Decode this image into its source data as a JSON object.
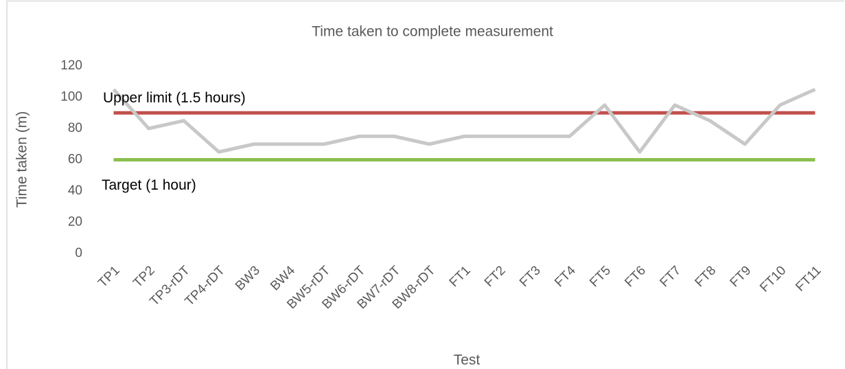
{
  "chart_data": {
    "type": "line",
    "title": "Time taken to complete measurement",
    "xlabel": "Test",
    "ylabel": "Time taken (m)",
    "categories": [
      "TP1",
      "TP2",
      "TP3-rDT",
      "TP4-rDT",
      "BW3",
      "BW4",
      "BW5-rDT",
      "BW6-rDT",
      "BW7-rDT",
      "BW8-rDT",
      "FT1",
      "FT2",
      "FT3",
      "FT4",
      "FT5",
      "FT6",
      "FT7",
      "FT8",
      "FT9",
      "FT10",
      "FT11"
    ],
    "series": [
      {
        "color": "#c8c8c8",
        "values": [
          105,
          80,
          85,
          65,
          70,
          70,
          70,
          75,
          75,
          70,
          75,
          75,
          75,
          75,
          95,
          65,
          95,
          85,
          70,
          95,
          105
        ]
      },
      {
        "name": "Upper limit (1.5 hours)",
        "color": "#c0504d",
        "values": [
          90,
          90,
          90,
          90,
          90,
          90,
          90,
          90,
          90,
          90,
          90,
          90,
          90,
          90,
          90,
          90,
          90,
          90,
          90,
          90,
          90
        ]
      },
      {
        "name": "Target (1 hour)",
        "color": "#8cbf4f",
        "values": [
          60,
          60,
          60,
          60,
          60,
          60,
          60,
          60,
          60,
          60,
          60,
          60,
          60,
          60,
          60,
          60,
          60,
          60,
          60,
          60,
          60
        ]
      }
    ],
    "ylim": [
      0,
      120
    ],
    "yticks": [
      0,
      20,
      40,
      60,
      80,
      100,
      120
    ],
    "grid": false
  }
}
